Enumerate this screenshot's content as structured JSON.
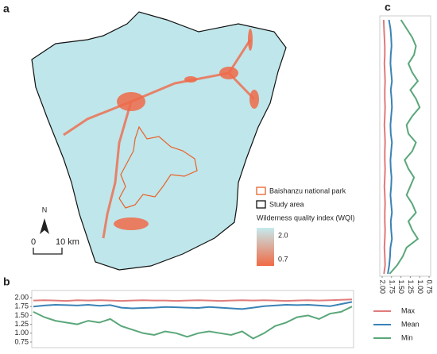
{
  "panels": {
    "a": "a",
    "b": "b",
    "c": "c"
  },
  "map": {
    "north": "N",
    "scale": {
      "start": "0",
      "end": "10 km"
    },
    "legend": {
      "park": "Baishanzu national park",
      "study": "Study area",
      "wqi_title": "Wilderness quality index (WQI)",
      "wqi_high": "2.0",
      "wqi_low": "0.7"
    }
  },
  "chart_data": [
    {
      "type": "line",
      "orientation": "horizontal",
      "ylim": [
        0.7,
        2.05
      ],
      "yticks": [
        {
          "value": 2,
          "label": "2.00"
        },
        {
          "value": 1.75,
          "label": "1.75"
        },
        {
          "value": 1.5,
          "label": "1.50"
        },
        {
          "value": 1.25,
          "label": "1.25"
        },
        {
          "value": 1,
          "label": "1.00"
        },
        {
          "value": 0.75,
          "label": "0.75"
        }
      ],
      "series": [
        {
          "name": "Max",
          "color": "#e07b7b",
          "values": [
            1.92,
            1.93,
            1.92,
            1.91,
            1.93,
            1.92,
            1.93,
            1.92,
            1.91,
            1.92,
            1.93,
            1.92,
            1.92,
            1.91,
            1.92,
            1.93,
            1.92,
            1.91,
            1.92,
            1.93,
            1.92,
            1.93,
            1.92,
            1.91,
            1.92,
            1.93,
            1.92,
            1.93,
            1.94,
            1.95
          ]
        },
        {
          "name": "Mean",
          "color": "#3a82b5",
          "values": [
            1.75,
            1.78,
            1.8,
            1.79,
            1.78,
            1.8,
            1.77,
            1.79,
            1.72,
            1.7,
            1.71,
            1.72,
            1.74,
            1.73,
            1.72,
            1.71,
            1.74,
            1.72,
            1.7,
            1.68,
            1.72,
            1.76,
            1.78,
            1.8,
            1.79,
            1.8,
            1.78,
            1.76,
            1.82,
            1.88
          ]
        },
        {
          "name": "Min",
          "color": "#5aa77a",
          "values": [
            1.6,
            1.45,
            1.35,
            1.3,
            1.25,
            1.35,
            1.3,
            1.4,
            1.2,
            1.1,
            1.0,
            0.95,
            1.05,
            1.0,
            0.9,
            1.0,
            1.05,
            1.0,
            0.95,
            1.05,
            0.85,
            1.0,
            1.2,
            1.3,
            1.45,
            1.5,
            1.4,
            1.55,
            1.6,
            1.75
          ]
        }
      ]
    },
    {
      "type": "line",
      "orientation": "vertical",
      "xlim": [
        2.05,
        0.7
      ],
      "xticks": [
        {
          "value": 2,
          "label": "2.00"
        },
        {
          "value": 1.75,
          "label": "1.75"
        },
        {
          "value": 1.5,
          "label": "1.50"
        },
        {
          "value": 1.25,
          "label": "1.25"
        },
        {
          "value": 1,
          "label": "1.00"
        },
        {
          "value": 0.75,
          "label": "0.75"
        }
      ],
      "series": [
        {
          "color": "#e07b7b",
          "values": [
            1.96,
            1.95,
            1.94,
            1.93,
            1.93,
            1.94,
            1.93,
            1.92,
            1.93,
            1.93,
            1.92,
            1.93,
            1.94,
            1.93,
            1.92,
            1.93,
            1.93,
            1.92,
            1.93,
            1.94,
            1.93,
            1.92,
            1.93,
            1.93,
            1.92,
            1.93,
            1.94,
            1.93,
            1.92,
            1.95
          ]
        },
        {
          "color": "#3a82b5",
          "values": [
            1.82,
            1.78,
            1.76,
            1.75,
            1.77,
            1.78,
            1.76,
            1.74,
            1.77,
            1.75,
            1.74,
            1.76,
            1.78,
            1.77,
            1.74,
            1.76,
            1.78,
            1.77,
            1.75,
            1.76,
            1.78,
            1.76,
            1.74,
            1.77,
            1.76,
            1.74,
            1.78,
            1.79,
            1.81,
            1.85
          ]
        },
        {
          "color": "#5aa77a",
          "values": [
            1.5,
            1.35,
            1.2,
            1.1,
            1.15,
            1.3,
            1.2,
            1.05,
            1.25,
            1.1,
            1.0,
            1.2,
            1.35,
            1.3,
            1.1,
            1.2,
            1.4,
            1.3,
            1.15,
            1.25,
            1.35,
            1.2,
            1.1,
            1.3,
            1.2,
            1.05,
            1.35,
            1.45,
            1.6,
            1.8
          ]
        }
      ]
    }
  ]
}
